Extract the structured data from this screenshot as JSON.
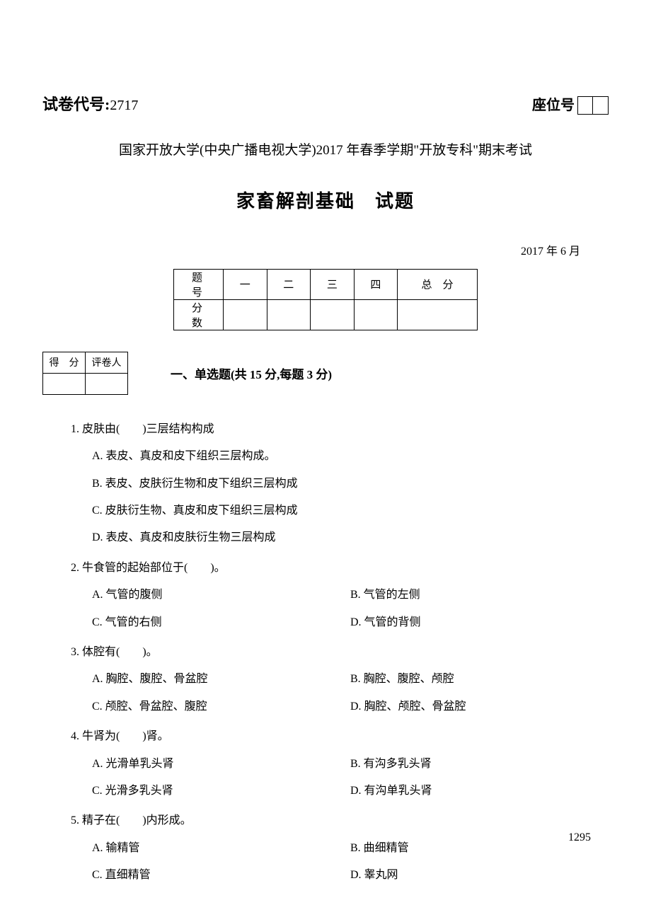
{
  "header": {
    "exam_code_label": "试卷代号:",
    "exam_code_number": "2717",
    "seat_label": "座位号"
  },
  "subtitle": "国家开放大学(中央广播电视大学)2017 年春季学期\"开放专科\"期末考试",
  "title": "家畜解剖基础　试题",
  "date": "2017 年 6 月",
  "score_table": {
    "row1": [
      "题号",
      "一",
      "二",
      "三",
      "四",
      "总　分"
    ],
    "row2_label": "分数"
  },
  "grader_table": {
    "h1": "得　分",
    "h2": "评卷人"
  },
  "section1_title": "一、单选题(共 15 分,每题 3 分)",
  "questions": [
    {
      "stem": "1. 皮肤由(　　)三层结构构成",
      "layout": "single",
      "options": [
        "A. 表皮、真皮和皮下组织三层构成。",
        "B. 表皮、皮肤衍生物和皮下组织三层构成",
        "C. 皮肤衍生物、真皮和皮下组织三层构成",
        "D. 表皮、真皮和皮肤衍生物三层构成"
      ]
    },
    {
      "stem": "2. 牛食管的起始部位于(　　)。",
      "layout": "double",
      "options_left": [
        "A. 气管的腹侧",
        "C. 气管的右侧"
      ],
      "options_right": [
        "B. 气管的左侧",
        "D. 气管的背侧"
      ]
    },
    {
      "stem": "3. 体腔有(　　)。",
      "layout": "double",
      "options_left": [
        "A. 胸腔、腹腔、骨盆腔",
        "C. 颅腔、骨盆腔、腹腔"
      ],
      "options_right": [
        "B. 胸腔、腹腔、颅腔",
        "D. 胸腔、颅腔、骨盆腔"
      ]
    },
    {
      "stem": "4. 牛肾为(　　)肾。",
      "layout": "double",
      "options_left": [
        "A. 光滑单乳头肾",
        "C. 光滑多乳头肾"
      ],
      "options_right": [
        "B. 有沟多乳头肾",
        "D. 有沟单乳头肾"
      ]
    },
    {
      "stem": "5. 精子在(　　)内形成。",
      "layout": "double",
      "options_left": [
        "A. 输精管",
        "C. 直细精管"
      ],
      "options_right": [
        "B. 曲细精管",
        "D. 睾丸网"
      ]
    }
  ],
  "page_number": "1295"
}
